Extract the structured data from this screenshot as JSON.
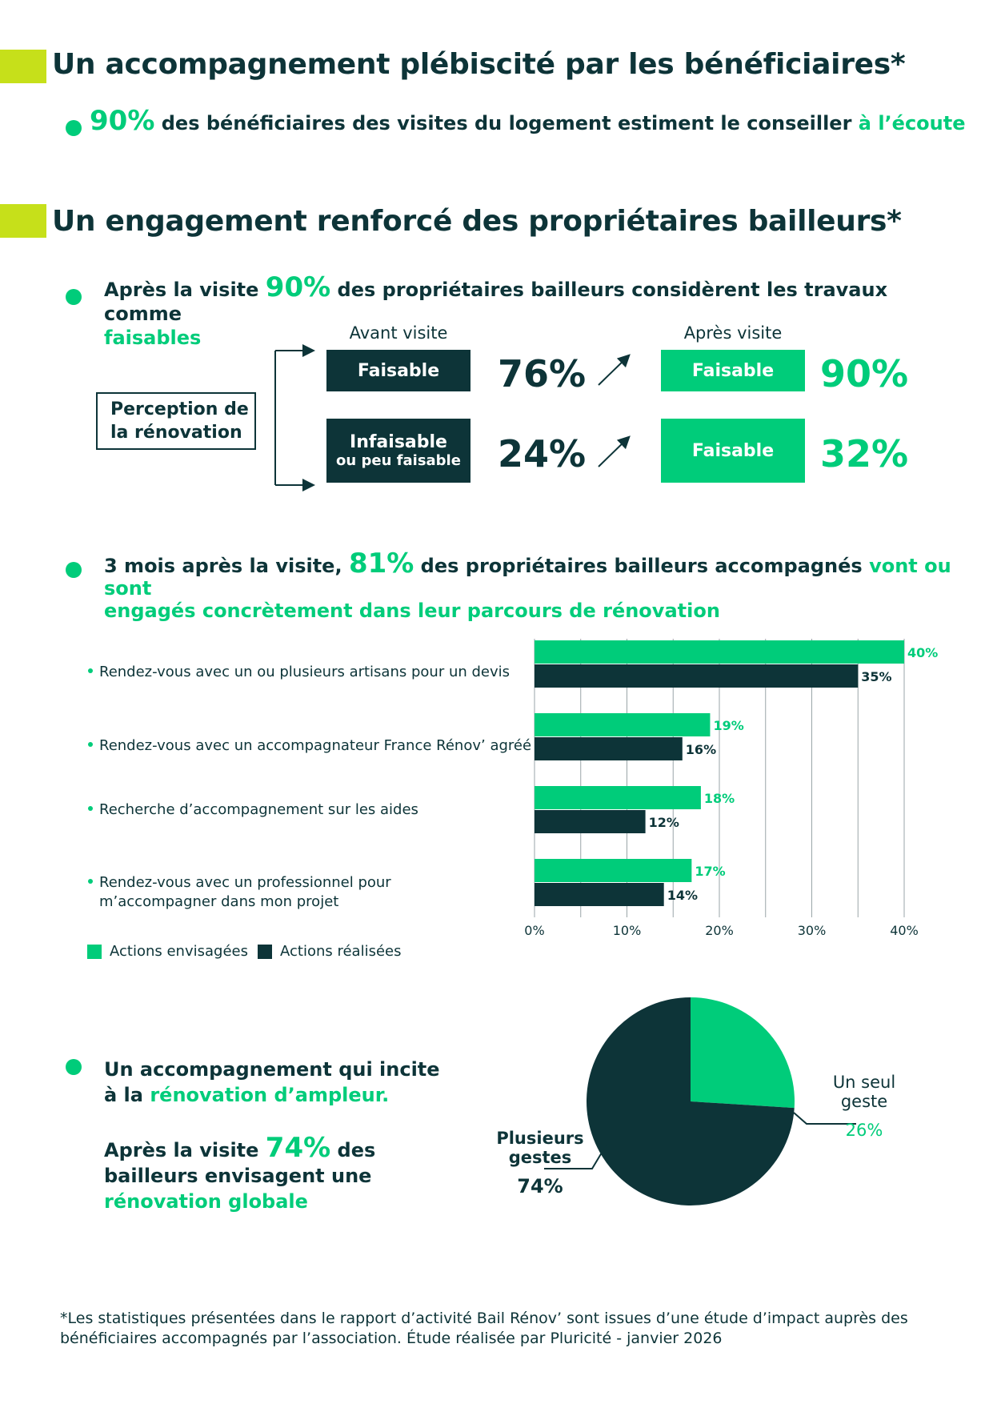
{
  "section1": {
    "title": "Un accompagnement plébiscité par les bénéficiaires*",
    "stat": {
      "value": "90%",
      "text": " des bénéficiaires des visites du logement estiment le conseiller ",
      "highlight": "à l’écoute"
    }
  },
  "section2": {
    "title": "Un engagement renforcé des propriétaires bailleurs*",
    "stat1": {
      "prefix": "Après la visite ",
      "value": "90%",
      "text": " des propriétaires bailleurs considèrent les travaux comme",
      "highlight": "faisables"
    },
    "diagram": {
      "perception_line1": "Perception de",
      "perception_line2": "la rénovation",
      "before_header": "Avant visite",
      "after_header": "Après visite",
      "row1": {
        "before_label": "Faisable",
        "before_pct": "76%",
        "after_label": "Faisable",
        "after_pct": "90%"
      },
      "row2": {
        "before_label": "Infaisable",
        "before_sublabel": "ou peu faisable",
        "before_pct": "24%",
        "after_label": "Faisable",
        "after_pct": "32%"
      }
    },
    "stat2": {
      "prefix": "3 mois après la visite, ",
      "value": "81%",
      "text": " des propriétaires bailleurs accompagnés ",
      "highlight1": "vont ou sont",
      "highlight2": "engagés concrètement dans leur parcours de rénovation"
    },
    "bar_labels": [
      [
        "Rendez-vous avec un ou plusieurs artisans pour un devis"
      ],
      [
        "Rendez-vous avec un accompagnateur France Rénov’ agréé"
      ],
      [
        "Recherche d’accompagnement sur les aides"
      ],
      [
        "Rendez-vous avec un professionnel pour",
        "m’accompagner dans mon projet"
      ]
    ],
    "legend": {
      "envisaged": "Actions envisagées",
      "realized": "Actions réalisées"
    },
    "stat3": {
      "line1": "Un accompagnement qui incite",
      "line2_prefix": "à la ",
      "line2_highlight": "rénovation d’ampleur.",
      "line3_prefix": "Après la visite ",
      "line3_value": "74%",
      "line3_suffix": " des",
      "line4": "bailleurs envisagent une",
      "line5_highlight": "rénovation globale"
    }
  },
  "chart_data": [
    {
      "type": "bar",
      "orientation": "horizontal",
      "categories": [
        "Rendez-vous avec un ou plusieurs artisans pour un devis",
        "Rendez-vous avec un accompagnateur France Rénov’ agréé",
        "Recherche d’accompagnement sur les aides",
        "Rendez-vous avec un professionnel pour m’accompagner dans mon projet"
      ],
      "series": [
        {
          "name": "Actions envisagées",
          "values": [
            40,
            19,
            18,
            17
          ],
          "labels": [
            "40%",
            "19%",
            "18%",
            "17%"
          ],
          "color": "#00cc7a"
        },
        {
          "name": "Actions réalisées",
          "values": [
            35,
            16,
            12,
            14
          ],
          "labels": [
            "35%",
            "16%",
            "12%",
            "14%"
          ],
          "color": "#0d3438"
        }
      ],
      "xlim": [
        0,
        40
      ],
      "xticks": [
        "0%",
        "10%",
        "20%",
        "30%",
        "40%"
      ],
      "grid": true,
      "legend_placement": "bottom-left"
    },
    {
      "type": "pie",
      "slices": [
        {
          "label_line1": "Un seul",
          "label_line2": "geste",
          "value": 26,
          "value_label": "26%",
          "color": "#00cc7a"
        },
        {
          "label_line1": "Plusieurs",
          "label_line2": "gestes",
          "value": 74,
          "value_label": "74%",
          "color": "#0d3438"
        }
      ]
    }
  ],
  "footnote": {
    "line1": "*Les statistiques présentées dans le rapport d’activité Bail Rénov’ sont issues d’une étude d’impact auprès des",
    "line2": "bénéficiaires accompagnés par l’association. Étude réalisée par Pluricité - janvier 2026"
  },
  "colors": {
    "green": "#00cc7a",
    "dark": "#0d3438",
    "lime": "#c6e01a"
  }
}
